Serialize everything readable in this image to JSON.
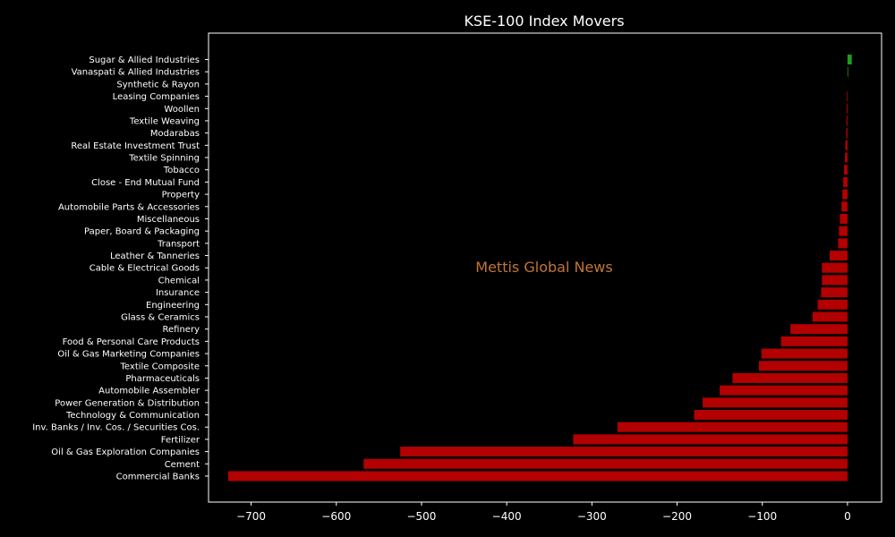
{
  "chart_data": {
    "type": "bar",
    "orientation": "horizontal",
    "title": "KSE-100 Index Movers",
    "watermark": "Mettis Global News",
    "xlabel": "",
    "ylabel": "",
    "xlim": [
      -750,
      40
    ],
    "xticks": [
      -700,
      -600,
      -500,
      -400,
      -300,
      -200,
      -100,
      0
    ],
    "xtick_labels": [
      "−700",
      "−600",
      "−500",
      "−400",
      "−300",
      "−200",
      "−100",
      "0"
    ],
    "grid": false,
    "colors": {
      "positive": "#1f9d1f",
      "negative": "#b30000",
      "background": "#000000",
      "axes": "#ffffff",
      "text": "#ffffff",
      "watermark": "#c0753a"
    },
    "categories": [
      "Sugar & Allied Industries",
      "Vanaspati & Allied Industries",
      "Synthetic & Rayon",
      "Leasing Companies",
      "Woollen",
      "Textile Weaving",
      "Modarabas",
      "Real Estate Investment Trust",
      "Textile Spinning",
      "Tobacco",
      "Close - End Mutual Fund",
      "Property",
      "Automobile Parts & Accessories",
      "Miscellaneous",
      "Paper, Board & Packaging",
      "Transport",
      "Leather & Tanneries",
      "Cable & Electrical Goods",
      "Chemical",
      "Insurance",
      "Engineering",
      "Glass & Ceramics",
      "Refinery",
      "Food & Personal Care Products",
      "Oil & Gas Marketing Companies",
      "Textile Composite",
      "Pharmaceuticals",
      "Automobile Assembler",
      "Power Generation & Distribution",
      "Technology & Communication",
      "Inv. Banks / Inv. Cos. / Securities Cos.",
      "Fertilizer",
      "Oil & Gas Exploration Companies",
      "Cement",
      "Commercial Banks"
    ],
    "values": [
      5,
      0.8,
      0,
      -0.8,
      -1,
      -1.2,
      -1.5,
      -2.5,
      -3,
      -4,
      -5,
      -6,
      -7,
      -9,
      -10,
      -11,
      -21,
      -30,
      -30,
      -31,
      -35,
      -41,
      -67,
      -78,
      -101,
      -104,
      -135,
      -150,
      -170,
      -180,
      -270,
      -322,
      -525,
      -568,
      -727
    ]
  }
}
